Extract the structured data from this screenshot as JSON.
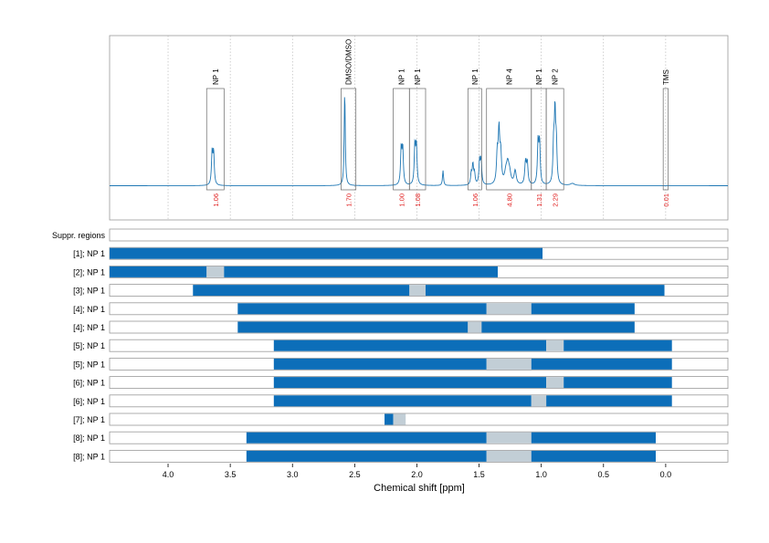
{
  "chart_data": {
    "type": "nmr-spectrum-with-region-assignments",
    "xlabel": "Chemical shift [ppm]",
    "xlim": [
      4.47,
      -0.5
    ],
    "x_ticks": [
      {
        "value": 4.0,
        "label": "4.0"
      },
      {
        "value": 3.5,
        "label": "3.5"
      },
      {
        "value": 3.0,
        "label": "3.0"
      },
      {
        "value": 2.5,
        "label": "2.5"
      },
      {
        "value": 2.0,
        "label": "2.0"
      },
      {
        "value": 1.5,
        "label": "1.5"
      },
      {
        "value": 1.0,
        "label": "1.0"
      },
      {
        "value": 0.5,
        "label": "0.5"
      },
      {
        "value": 0.0,
        "label": "0.0"
      }
    ],
    "grid_vlines": [
      4.0,
      3.5,
      3.0,
      2.5,
      2.0,
      1.5,
      1.0,
      0.5,
      0.0
    ],
    "spectrum": {
      "color": "#1f77b4",
      "baseline": 0.0,
      "peaks": [
        {
          "ppm": 3.64,
          "height": 0.32,
          "width": 0.006,
          "multiplet": 2,
          "spacing": 0.012
        },
        {
          "ppm": 2.58,
          "height": 0.95,
          "width": 0.005,
          "multiplet": 1,
          "spacing": 0
        },
        {
          "ppm": 2.12,
          "height": 0.36,
          "width": 0.006,
          "multiplet": 2,
          "spacing": 0.012
        },
        {
          "ppm": 2.01,
          "height": 0.39,
          "width": 0.006,
          "multiplet": 2,
          "spacing": 0.012
        },
        {
          "ppm": 1.79,
          "height": 0.15,
          "width": 0.005,
          "multiplet": 1,
          "spacing": 0
        },
        {
          "ppm": 1.55,
          "height": 0.2,
          "width": 0.006,
          "multiplet": 3,
          "spacing": 0.013
        },
        {
          "ppm": 1.49,
          "height": 0.24,
          "width": 0.006,
          "multiplet": 2,
          "spacing": 0.012
        },
        {
          "ppm": 1.34,
          "height": 0.52,
          "width": 0.007,
          "multiplet": 3,
          "spacing": 0.014
        },
        {
          "ppm": 1.27,
          "height": 0.18,
          "width": 0.012,
          "multiplet": 3,
          "spacing": 0.015
        },
        {
          "ppm": 1.21,
          "height": 0.14,
          "width": 0.01,
          "multiplet": 1,
          "spacing": 0
        },
        {
          "ppm": 1.12,
          "height": 0.22,
          "width": 0.007,
          "multiplet": 2,
          "spacing": 0.014
        },
        {
          "ppm": 1.02,
          "height": 0.42,
          "width": 0.006,
          "multiplet": 2,
          "spacing": 0.012
        },
        {
          "ppm": 0.89,
          "height": 0.7,
          "width": 0.006,
          "multiplet": 3,
          "spacing": 0.011
        },
        {
          "ppm": 0.75,
          "height": 0.02,
          "width": 0.02,
          "multiplet": 1,
          "spacing": 0
        }
      ]
    },
    "signal_regions": [
      {
        "label": "NP 1",
        "integral": "1.06",
        "from": 3.55,
        "to": 3.69
      },
      {
        "label": "DMSO/DMSO",
        "integral": "1.70",
        "from": 2.49,
        "to": 2.61
      },
      {
        "label": "NP 1",
        "integral": "1.00",
        "from": 2.06,
        "to": 2.19
      },
      {
        "label": "NP 1",
        "integral": "1.08",
        "from": 1.93,
        "to": 2.06
      },
      {
        "label": "NP 1",
        "integral": "1.06",
        "from": 1.48,
        "to": 1.59
      },
      {
        "label": "NP 4",
        "integral": "4.80",
        "from": 1.08,
        "to": 1.44
      },
      {
        "label": "NP 1",
        "integral": "1.31",
        "from": 0.96,
        "to": 1.08
      },
      {
        "label": "NP 2",
        "integral": "2.29",
        "from": 0.82,
        "to": 0.96
      },
      {
        "label": "TMS",
        "integral": "0.01",
        "from": -0.02,
        "to": 0.02
      }
    ],
    "colors": {
      "assigned": "#0c6eb9",
      "suppressed": "#c2ced6",
      "integral_text": "#e02020",
      "frame": "#999999",
      "grid": "#b0b0b0"
    },
    "rows": [
      {
        "label": "Suppr. regions",
        "segments": []
      },
      {
        "label": "[1]; NP 1",
        "segments": [
          {
            "kind": "a",
            "from": 4.47,
            "to": 0.99
          }
        ]
      },
      {
        "label": "[2]; NP 1",
        "segments": [
          {
            "kind": "a",
            "from": 4.47,
            "to": 3.69
          },
          {
            "kind": "s",
            "from": 3.69,
            "to": 3.55
          },
          {
            "kind": "a",
            "from": 3.55,
            "to": 1.35
          }
        ]
      },
      {
        "label": "[3]; NP 1",
        "segments": [
          {
            "kind": "a",
            "from": 3.8,
            "to": 2.06
          },
          {
            "kind": "s",
            "from": 2.06,
            "to": 1.93
          },
          {
            "kind": "a",
            "from": 1.93,
            "to": 0.01
          }
        ]
      },
      {
        "label": "[4]; NP 1",
        "segments": [
          {
            "kind": "a",
            "from": 3.44,
            "to": 1.44
          },
          {
            "kind": "s",
            "from": 1.44,
            "to": 1.08
          },
          {
            "kind": "a",
            "from": 1.08,
            "to": 0.25
          }
        ]
      },
      {
        "label": "[4]; NP 1",
        "segments": [
          {
            "kind": "a",
            "from": 3.44,
            "to": 1.59
          },
          {
            "kind": "s",
            "from": 1.59,
            "to": 1.48
          },
          {
            "kind": "a",
            "from": 1.48,
            "to": 0.25
          }
        ]
      },
      {
        "label": "[5]; NP 1",
        "segments": [
          {
            "kind": "a",
            "from": 3.15,
            "to": 0.96
          },
          {
            "kind": "s",
            "from": 0.96,
            "to": 0.82
          },
          {
            "kind": "a",
            "from": 0.82,
            "to": -0.05
          }
        ]
      },
      {
        "label": "[5]; NP 1",
        "segments": [
          {
            "kind": "a",
            "from": 3.15,
            "to": 1.44
          },
          {
            "kind": "s",
            "from": 1.44,
            "to": 1.08
          },
          {
            "kind": "a",
            "from": 1.08,
            "to": -0.05
          }
        ]
      },
      {
        "label": "[6]; NP 1",
        "segments": [
          {
            "kind": "a",
            "from": 3.15,
            "to": 0.96
          },
          {
            "kind": "s",
            "from": 0.96,
            "to": 0.82
          },
          {
            "kind": "a",
            "from": 0.82,
            "to": -0.05
          }
        ]
      },
      {
        "label": "[6]; NP 1",
        "segments": [
          {
            "kind": "a",
            "from": 3.15,
            "to": 1.08
          },
          {
            "kind": "s",
            "from": 1.08,
            "to": 0.96
          },
          {
            "kind": "a",
            "from": 0.96,
            "to": -0.05
          }
        ]
      },
      {
        "label": "[7]; NP 1",
        "segments": [
          {
            "kind": "a",
            "from": 2.26,
            "to": 2.19
          },
          {
            "kind": "s",
            "from": 2.19,
            "to": 2.09
          }
        ]
      },
      {
        "label": "[8]; NP 1",
        "segments": [
          {
            "kind": "a",
            "from": 3.37,
            "to": 1.44
          },
          {
            "kind": "s",
            "from": 1.44,
            "to": 1.08
          },
          {
            "kind": "a",
            "from": 1.08,
            "to": 0.08
          }
        ]
      },
      {
        "label": "[8]; NP 1",
        "segments": [
          {
            "kind": "a",
            "from": 3.37,
            "to": 1.44
          },
          {
            "kind": "s",
            "from": 1.44,
            "to": 1.08
          },
          {
            "kind": "a",
            "from": 1.08,
            "to": 0.08
          }
        ]
      }
    ]
  }
}
